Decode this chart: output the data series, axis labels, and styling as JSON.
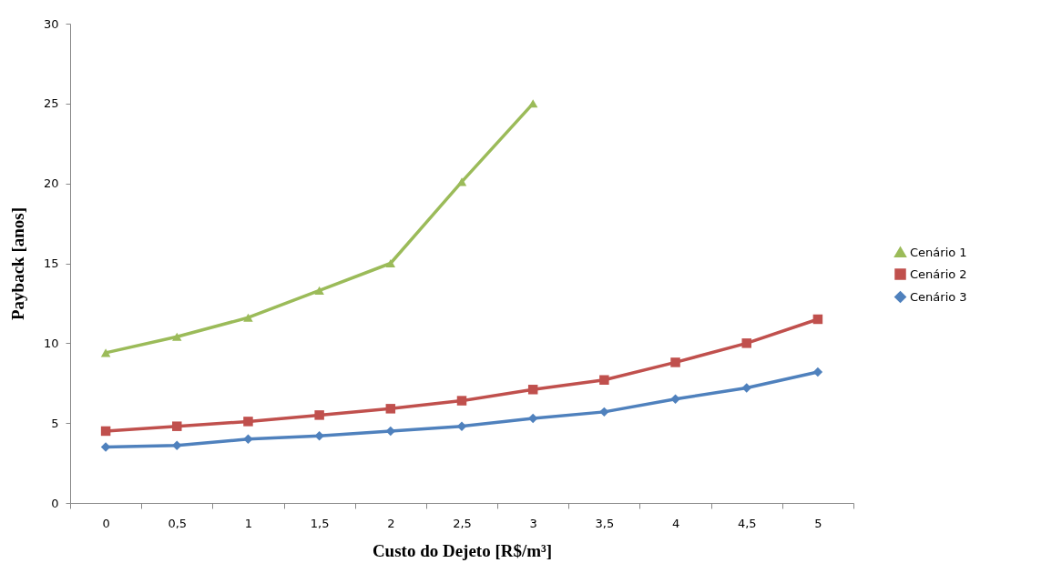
{
  "chart_data": {
    "type": "line",
    "xlabel": "Custo do Dejeto [R$/m³]",
    "ylabel": "Payback [anos]",
    "categories": [
      "0",
      "0,5",
      "1",
      "1,5",
      "2",
      "2,5",
      "3",
      "3,5",
      "4",
      "4,5",
      "5"
    ],
    "series": [
      {
        "name": "Cenário 1",
        "color": "#9bbb59",
        "marker": "triangle",
        "values": [
          9.4,
          10.4,
          11.6,
          13.3,
          15.0,
          20.1,
          25.0,
          null,
          null,
          null,
          null
        ]
      },
      {
        "name": "Cenário 2",
        "color": "#c0504d",
        "marker": "square",
        "values": [
          4.5,
          4.8,
          5.1,
          5.5,
          5.9,
          6.4,
          7.1,
          7.7,
          8.8,
          10.0,
          11.5
        ]
      },
      {
        "name": "Cenário 3",
        "color": "#4f81bd",
        "marker": "diamond",
        "values": [
          3.5,
          3.6,
          4.0,
          4.2,
          4.5,
          4.8,
          5.3,
          5.7,
          6.5,
          7.2,
          8.2
        ]
      }
    ],
    "ylim": [
      0,
      30
    ],
    "yticks": [
      0,
      5,
      10,
      15,
      20,
      25,
      30
    ],
    "grid": false,
    "legend": "right",
    "line_style": "solid"
  }
}
